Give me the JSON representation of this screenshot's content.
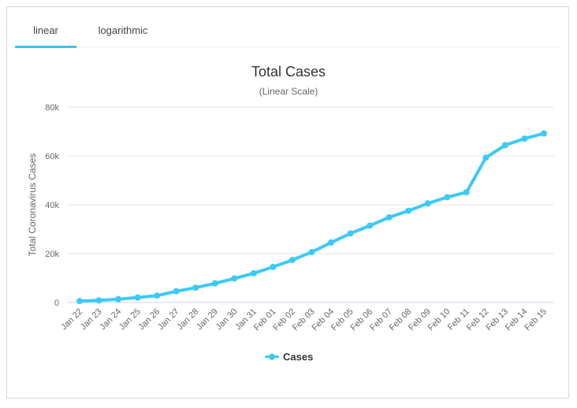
{
  "tabs": {
    "linear": "linear",
    "logarithmic": "logarithmic"
  },
  "colors": {
    "series": "#3cc9f7",
    "grid": "#e6e6e6",
    "tab_accent": "#35c5f5"
  },
  "chart_data": {
    "type": "line",
    "title": "Total Cases",
    "subtitle": "(Linear Scale)",
    "xlabel": "",
    "ylabel": "Total Coronavirus Cases",
    "ylim": [
      0,
      80000
    ],
    "yticks": [
      0,
      20000,
      40000,
      60000,
      80000
    ],
    "ytick_labels": [
      "0",
      "20k",
      "40k",
      "60k",
      "80k"
    ],
    "grid": true,
    "legend": "bottom",
    "categories": [
      "Jan 22",
      "Jan 23",
      "Jan 24",
      "Jan 25",
      "Jan 26",
      "Jan 27",
      "Jan 28",
      "Jan 29",
      "Jan 30",
      "Jan 31",
      "Feb 01",
      "Feb 02",
      "Feb 03",
      "Feb 04",
      "Feb 05",
      "Feb 06",
      "Feb 07",
      "Feb 08",
      "Feb 09",
      "Feb 10",
      "Feb 11",
      "Feb 12",
      "Feb 13",
      "Feb 14",
      "Feb 15"
    ],
    "series": [
      {
        "name": "Cases",
        "values": [
          580,
          845,
          1317,
          2015,
          2800,
          4581,
          6058,
          7813,
          9823,
          11950,
          14553,
          17391,
          20630,
          24545,
          28266,
          31439,
          34876,
          37552,
          40553,
          43099,
          45134,
          59287,
          64438,
          67100,
          69197
        ]
      }
    ]
  }
}
